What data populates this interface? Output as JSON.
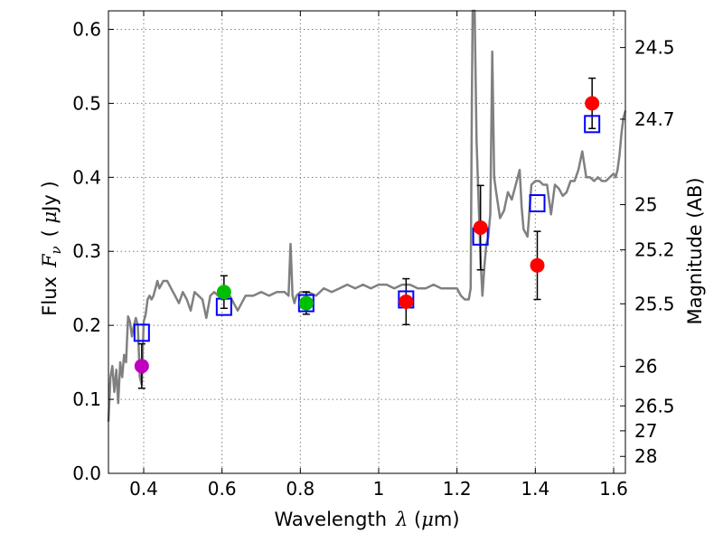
{
  "chart_data": {
    "type": "scatter",
    "title": "",
    "xlabel_prefix": "Wavelength",
    "xlabel_var": "λ",
    "xlabel_unit_open": " (",
    "xlabel_unit_mu": "μ",
    "xlabel_unit_rest": "m)",
    "ylabel_prefix": "Flux",
    "ylabel_var": "F",
    "ylabel_sub": "ν",
    "ylabel_unit_open": "( ",
    "ylabel_unit_mu": "μ",
    "ylabel_unit_rest": "Jy )",
    "y2label": "Magnitude (AB)",
    "xlim": [
      0.31,
      1.63
    ],
    "ylim": [
      0.0,
      0.625
    ],
    "grid": true,
    "x_ticks": [
      0.4,
      0.6,
      0.8,
      1.0,
      1.2,
      1.4,
      1.6
    ],
    "x_tick_labels": [
      "0.4",
      "0.6",
      "0.8",
      "1",
      "1.2",
      "1.4",
      "1.6"
    ],
    "y_ticks": [
      0.0,
      0.1,
      0.2,
      0.3,
      0.4,
      0.5,
      0.6
    ],
    "y_tick_labels": [
      "0.0",
      "0.1",
      "0.2",
      "0.3",
      "0.4",
      "0.5",
      "0.6"
    ],
    "y2_ticks": [
      {
        "label": "24.5",
        "flux": 0.5754
      },
      {
        "label": "24.7",
        "flux": 0.4786
      },
      {
        "label": "25",
        "flux": 0.3631
      },
      {
        "label": "25.2",
        "flux": 0.302
      },
      {
        "label": "25.5",
        "flux": 0.2291
      },
      {
        "label": "26",
        "flux": 0.1445
      },
      {
        "label": "26.5",
        "flux": 0.0912
      },
      {
        "label": "27",
        "flux": 0.0575
      },
      {
        "label": "28",
        "flux": 0.0229
      }
    ],
    "model_spectrum": {
      "color": "#808080",
      "x": [
        0.31,
        0.315,
        0.32,
        0.325,
        0.33,
        0.335,
        0.34,
        0.345,
        0.35,
        0.355,
        0.36,
        0.365,
        0.37,
        0.375,
        0.38,
        0.385,
        0.39,
        0.395,
        0.4,
        0.405,
        0.41,
        0.415,
        0.42,
        0.425,
        0.43,
        0.435,
        0.44,
        0.45,
        0.46,
        0.47,
        0.48,
        0.49,
        0.5,
        0.51,
        0.52,
        0.53,
        0.54,
        0.55,
        0.56,
        0.57,
        0.58,
        0.6,
        0.62,
        0.64,
        0.66,
        0.68,
        0.7,
        0.72,
        0.74,
        0.76,
        0.77,
        0.775,
        0.78,
        0.785,
        0.79,
        0.8,
        0.82,
        0.84,
        0.86,
        0.88,
        0.9,
        0.92,
        0.94,
        0.96,
        0.98,
        1.0,
        1.02,
        1.04,
        1.06,
        1.08,
        1.1,
        1.12,
        1.14,
        1.16,
        1.18,
        1.2,
        1.21,
        1.22,
        1.23,
        1.235,
        1.238,
        1.24,
        1.242,
        1.245,
        1.25,
        1.26,
        1.265,
        1.27,
        1.275,
        1.28,
        1.285,
        1.29,
        1.295,
        1.3,
        1.31,
        1.32,
        1.33,
        1.34,
        1.35,
        1.36,
        1.365,
        1.37,
        1.38,
        1.39,
        1.4,
        1.41,
        1.42,
        1.43,
        1.44,
        1.45,
        1.46,
        1.47,
        1.48,
        1.49,
        1.5,
        1.51,
        1.52,
        1.53,
        1.54,
        1.55,
        1.56,
        1.57,
        1.58,
        1.59,
        1.6,
        1.605,
        1.61,
        1.615,
        1.62,
        1.625,
        1.63
      ],
      "y": [
        0.07,
        0.13,
        0.145,
        0.11,
        0.14,
        0.095,
        0.15,
        0.13,
        0.16,
        0.15,
        0.212,
        0.205,
        0.185,
        0.2,
        0.21,
        0.2,
        0.13,
        0.12,
        0.205,
        0.215,
        0.235,
        0.24,
        0.235,
        0.24,
        0.25,
        0.26,
        0.25,
        0.26,
        0.26,
        0.25,
        0.24,
        0.23,
        0.245,
        0.235,
        0.22,
        0.245,
        0.24,
        0.235,
        0.21,
        0.24,
        0.245,
        0.235,
        0.24,
        0.22,
        0.24,
        0.24,
        0.245,
        0.24,
        0.245,
        0.245,
        0.24,
        0.31,
        0.24,
        0.23,
        0.24,
        0.245,
        0.245,
        0.24,
        0.25,
        0.245,
        0.25,
        0.255,
        0.25,
        0.255,
        0.25,
        0.255,
        0.255,
        0.25,
        0.255,
        0.255,
        0.25,
        0.25,
        0.255,
        0.25,
        0.25,
        0.25,
        0.24,
        0.235,
        0.235,
        0.25,
        0.5,
        0.625,
        0.625,
        0.625,
        0.45,
        0.29,
        0.24,
        0.28,
        0.31,
        0.32,
        0.35,
        0.57,
        0.4,
        0.38,
        0.345,
        0.355,
        0.38,
        0.37,
        0.39,
        0.41,
        0.36,
        0.33,
        0.32,
        0.39,
        0.395,
        0.395,
        0.39,
        0.39,
        0.35,
        0.39,
        0.385,
        0.375,
        0.38,
        0.395,
        0.395,
        0.41,
        0.435,
        0.4,
        0.4,
        0.395,
        0.4,
        0.395,
        0.395,
        0.4,
        0.405,
        0.4,
        0.41,
        0.43,
        0.46,
        0.48,
        0.49
      ]
    },
    "series": [
      {
        "name": "",
        "marker": "square",
        "color": "#0000ff",
        "x": [
          0.395,
          0.605,
          0.815,
          1.07,
          1.26,
          1.405,
          1.545
        ],
        "y": [
          0.19,
          0.225,
          0.23,
          0.235,
          0.32,
          0.365,
          0.472
        ]
      },
      {
        "name": "",
        "marker": "circle",
        "color": "#bf00bf",
        "x": [
          0.395
        ],
        "y": [
          0.145
        ],
        "yerr": [
          0.03
        ]
      },
      {
        "name": "",
        "marker": "circle",
        "color": "#00bf00",
        "x": [
          0.605,
          0.815
        ],
        "y": [
          0.245,
          0.23
        ],
        "yerr": [
          0.022,
          0.015
        ]
      },
      {
        "name": "",
        "marker": "circle",
        "color": "#ff0000",
        "x": [
          1.07,
          1.26,
          1.405,
          1.545
        ],
        "y": [
          0.232,
          0.332,
          0.281,
          0.5
        ],
        "yerr": [
          0.031,
          0.057,
          0.046,
          0.034
        ]
      }
    ]
  }
}
